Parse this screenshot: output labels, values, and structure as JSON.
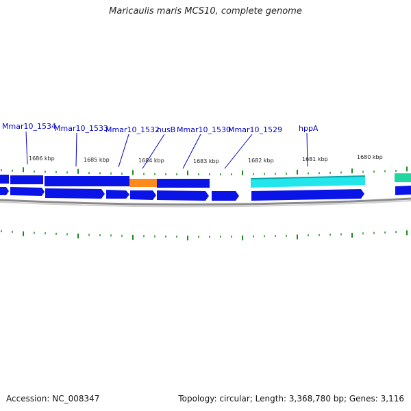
{
  "title": "Maricaulis maris MCS10, complete genome",
  "footer": {
    "accession": "Accession: NC_008347",
    "topology": "Topology: circular; Length: 3,368,780 bp; Genes: 3,116"
  },
  "scale_labels": [
    "1686 kbp",
    "1685 kbp",
    "1684 kbp",
    "1683 kbp",
    "1682 kbp",
    "1681 kbp",
    "1680 kbp"
  ],
  "gene_labels": [
    "Mmar10_1534",
    "Mmar10_1533",
    "Mmar10_1532",
    "nusB",
    "Mmar10_1530",
    "Mmar10_1529",
    "hppA"
  ],
  "colors": {
    "gene_label": "#0000cc",
    "gene_blue": "#0a14e6",
    "gene_orange": "#ff8a1c",
    "gene_cyan": "#22e6ec",
    "gene_teal": "#22d6a0",
    "tick": "#1a8a1a",
    "backbone": "#999999"
  }
}
